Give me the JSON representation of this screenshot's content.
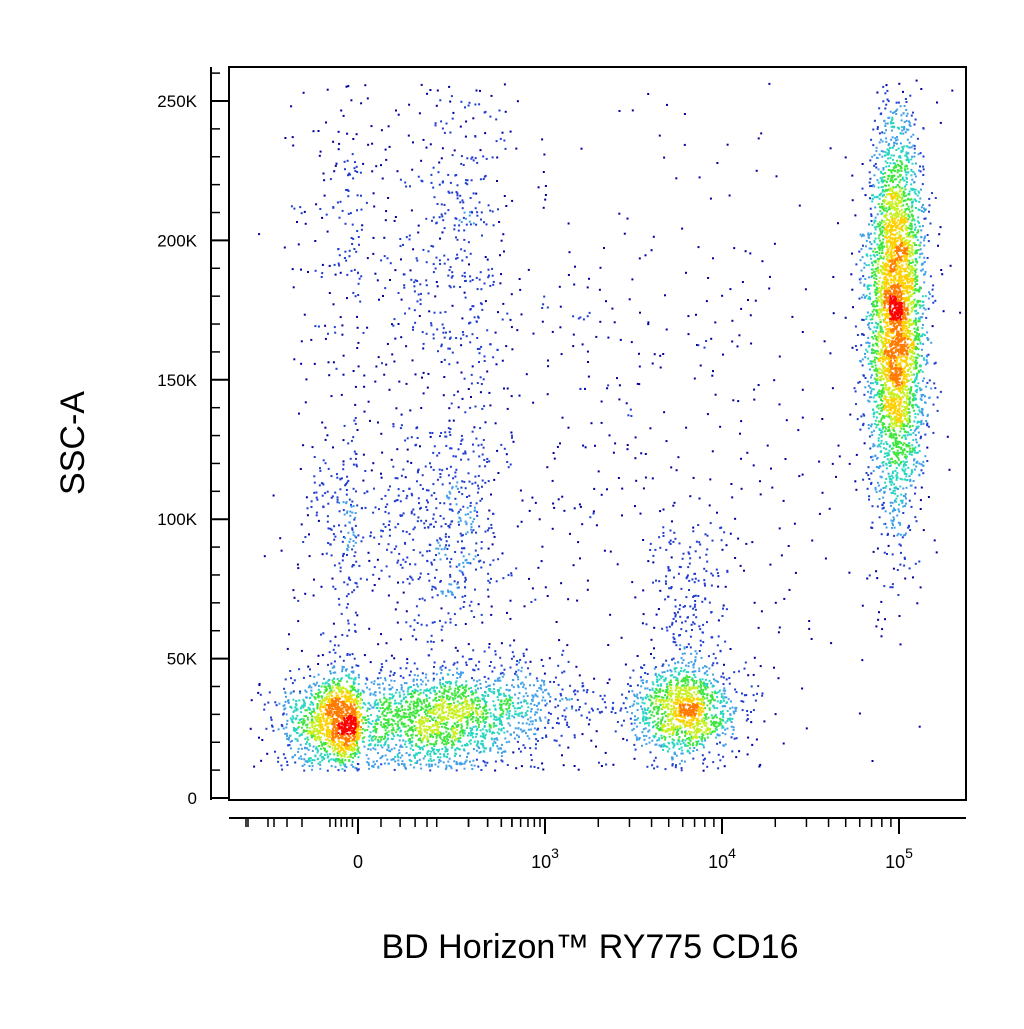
{
  "chart_data": {
    "type": "scatter",
    "style": "flow-cytometry density dot plot",
    "xlabel": "BD Horizon™ RY775 CD16",
    "ylabel": "SSC-A",
    "x_scale": "biexponential",
    "y_scale": "linear",
    "xlim": [
      -300,
      200000
    ],
    "ylim": [
      0,
      262144
    ],
    "x_ticks": [
      {
        "value": 0,
        "base": "0",
        "exp": ""
      },
      {
        "value": 1000,
        "base": "10",
        "exp": "3"
      },
      {
        "value": 10000,
        "base": "10",
        "exp": "4"
      },
      {
        "value": 100000,
        "base": "10",
        "exp": "5"
      }
    ],
    "y_ticks": [
      {
        "value": 0,
        "label": "0"
      },
      {
        "value": 50000,
        "label": "50K"
      },
      {
        "value": 100000,
        "label": "100K"
      },
      {
        "value": 150000,
        "label": "150K"
      },
      {
        "value": 200000,
        "label": "200K"
      },
      {
        "value": 250000,
        "label": "250K"
      }
    ],
    "grid": false,
    "legend": "none",
    "density_colors": [
      "#0000a0",
      "#1f3bd0",
      "#3fa0e8",
      "#27d6c0",
      "#3ce63c",
      "#c8f020",
      "#ffd000",
      "#ff7a00",
      "#ff0000"
    ],
    "populations": [
      {
        "x_center": -10,
        "x_spread": 120,
        "y_center": 28000,
        "y_spread": 9000,
        "count": 2600
      },
      {
        "x_center": 60,
        "x_spread": 120,
        "y_center": 95000,
        "y_spread": 20000,
        "count": 700
      },
      {
        "x_center": 80,
        "x_spread": 140,
        "y_center": 200000,
        "y_spread": 35000,
        "count": 600
      },
      {
        "x_center": 400,
        "x_spread": 0.35,
        "y_center": 32000,
        "y_spread": 9000,
        "count": 700
      },
      {
        "x_center": 6000,
        "x_spread": 0.15,
        "y_center": 32000,
        "y_spread": 8000,
        "count": 1200
      },
      {
        "x_center": 6500,
        "x_spread": 0.12,
        "y_center": 70000,
        "y_spread": 15000,
        "count": 200
      },
      {
        "x_center": 95000,
        "x_spread": 0.08,
        "y_center": 175000,
        "y_spread": 35000,
        "count": 3800
      },
      {
        "x_center": 2000,
        "x_spread": 0.9,
        "y_center": 120000,
        "y_spread": 70000,
        "count": 700
      }
    ]
  }
}
